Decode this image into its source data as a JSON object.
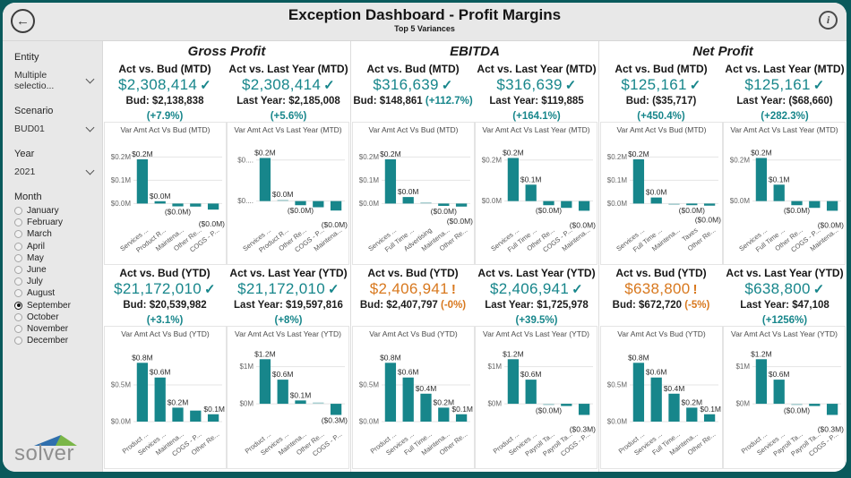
{
  "header": {
    "title": "Exception Dashboard - Profit Margins",
    "subtitle": "Top 5 Variances",
    "back_label": "←",
    "info_label": "i"
  },
  "colors": {
    "teal": "#17868b",
    "teal_light": "#a7ced0",
    "orange": "#d8781e",
    "frame": "#0a5a5c",
    "panel_gray": "#e8e8e8"
  },
  "sidebar": {
    "entity_label": "Entity",
    "entity_value": "Multiple selectio...",
    "scenario_label": "Scenario",
    "scenario_value": "BUD01",
    "year_label": "Year",
    "year_value": "2021",
    "month_label": "Month",
    "months": [
      "January",
      "February",
      "March",
      "April",
      "May",
      "June",
      "July",
      "August",
      "September",
      "October",
      "November",
      "December"
    ],
    "selected_month": "September",
    "logo_text": "solver"
  },
  "sections": [
    {
      "title": "Gross Profit",
      "mtd": {
        "kpis": [
          {
            "label": "Act vs. Bud (MTD)",
            "value": "$2,308,414",
            "status_icon": "check",
            "tone": "good",
            "compare": "Bud: $2,138,838",
            "pct": "(+7.9%)",
            "pct_inline": false
          },
          {
            "label": "Act vs. Last Year (MTD)",
            "value": "$2,308,414",
            "status_icon": "check",
            "tone": "good",
            "compare": "Last Year: $2,185,008",
            "pct": "(+5.6%)",
            "pct_inline": false
          }
        ],
        "charts": [
          {
            "type": "bar",
            "title": "Var Amt Act Vs Bud (MTD)",
            "ylim": [
              -0.06,
              0.24
            ],
            "y_ticks": [
              {
                "label": "$0.0M",
                "v": 0
              },
              {
                "label": "$0.1M",
                "v": 0.1
              },
              {
                "label": "$0.2M",
                "v": 0.2
              }
            ],
            "categories": [
              "Services ...",
              "Product R...",
              "Maintena...",
              "Other Re...",
              "COGS - P..."
            ],
            "values": [
              0.19,
              0.01,
              -0.012,
              -0.013,
              -0.026
            ],
            "labels": [
              "$0.2M",
              "$0.0M",
              "($0.0M)",
              "",
              "($0.0M)"
            ]
          },
          {
            "type": "bar",
            "title": "Var Amt Act Vs Last Year (MTD)",
            "ylim": [
              -0.08,
              0.26
            ],
            "y_ticks": [
              {
                "label": "$0....",
                "v": 0
              },
              {
                "label": "$0....",
                "v": 0.2
              }
            ],
            "categories": [
              "Services ...",
              "Product R...",
              "Other Re...",
              "COGS - P...",
              "Maintena..."
            ],
            "values": [
              0.21,
              0.006,
              -0.02,
              -0.03,
              -0.046
            ],
            "labels": [
              "$0.2M",
              "$0.0M",
              "($0.0M)",
              "",
              "($0.0M)"
            ]
          }
        ]
      },
      "ytd": {
        "kpis": [
          {
            "label": "Act vs. Bud (YTD)",
            "value": "$21,172,010",
            "status_icon": "check",
            "tone": "good",
            "compare": "Bud: $20,539,982",
            "pct": "(+3.1%)",
            "pct_inline": false
          },
          {
            "label": "Act vs. Last Year (YTD)",
            "value": "$21,172,010",
            "status_icon": "check",
            "tone": "good",
            "compare": "Last Year: $19,597,816",
            "pct": "(+8%)",
            "pct_inline": false
          }
        ],
        "charts": [
          {
            "type": "bar",
            "title": "Var Amt Act Vs Bud (YTD)",
            "ylim": [
              0,
              0.95
            ],
            "y_ticks": [
              {
                "label": "$0.0M",
                "v": 0
              },
              {
                "label": "$0.5M",
                "v": 0.5
              }
            ],
            "categories": [
              "Product ...",
              "Services ...",
              "Maintena...",
              "COGS - P...",
              "Other Re..."
            ],
            "values": [
              0.8,
              0.6,
              0.19,
              0.15,
              0.1
            ],
            "labels": [
              "$0.8M",
              "$0.6M",
              "$0.2M",
              "",
              "$0.1M"
            ]
          },
          {
            "type": "bar",
            "title": "Var Amt Act Vs Last Year (YTD)",
            "ylim": [
              -0.48,
              1.4
            ],
            "y_ticks": [
              {
                "label": "$0M",
                "v": 0
              },
              {
                "label": "$1M",
                "v": 1
              }
            ],
            "categories": [
              "Product ...",
              "Services ...",
              "Maintena...",
              "Other Re...",
              "COGS - P..."
            ],
            "values": [
              1.2,
              0.65,
              0.09,
              0.015,
              -0.3
            ],
            "labels": [
              "$1.2M",
              "$0.6M",
              "$0.1M",
              "",
              "($0.3M)"
            ]
          }
        ]
      }
    },
    {
      "title": "EBITDA",
      "mtd": {
        "kpis": [
          {
            "label": "Act vs. Bud (MTD)",
            "value": "$316,639",
            "status_icon": "check",
            "tone": "good",
            "compare": "Bud: $148,861",
            "pct": "(+112.7%)",
            "pct_inline": true
          },
          {
            "label": "Act vs. Last Year (MTD)",
            "value": "$316,639",
            "status_icon": "check",
            "tone": "good",
            "compare": "Last Year: $119,885",
            "pct": "(+164.1%)",
            "pct_inline": false
          }
        ],
        "charts": [
          {
            "type": "bar",
            "title": "Var Amt Act Vs Bud (MTD)",
            "ylim": [
              -0.06,
              0.24
            ],
            "y_ticks": [
              {
                "label": "$0.0M",
                "v": 0
              },
              {
                "label": "$0.1M",
                "v": 0.1
              },
              {
                "label": "$0.2M",
                "v": 0.2
              }
            ],
            "categories": [
              "Services ...",
              "Full Time ...",
              "Advertising",
              "Maintena...",
              "Other Re..."
            ],
            "values": [
              0.19,
              0.028,
              0.003,
              -0.01,
              -0.013
            ],
            "labels": [
              "$0.2M",
              "$0.0M",
              "",
              "($0.0M)",
              "($0.0M)"
            ]
          },
          {
            "type": "bar",
            "title": "Var Amt Act Vs Last Year (MTD)",
            "ylim": [
              -0.08,
              0.26
            ],
            "y_ticks": [
              {
                "label": "$0.0M",
                "v": 0
              },
              {
                "label": "$0.2M",
                "v": 0.2
              }
            ],
            "categories": [
              "Services ...",
              "Full Time ...",
              "Other Re...",
              "COGS - P...",
              "Maintena..."
            ],
            "values": [
              0.21,
              0.08,
              -0.02,
              -0.033,
              -0.047
            ],
            "labels": [
              "$0.2M",
              "$0.1M",
              "($0.0M)",
              "",
              "($0.0M)"
            ]
          }
        ]
      },
      "ytd": {
        "kpis": [
          {
            "label": "Act vs. Bud (YTD)",
            "value": "$2,406,941",
            "status_icon": "warn",
            "tone": "warn",
            "compare": "Bud: $2,407,797",
            "pct": "(-0%)",
            "pct_inline": true
          },
          {
            "label": "Act vs. Last Year (YTD)",
            "value": "$2,406,941",
            "status_icon": "check",
            "tone": "good",
            "compare": "Last Year: $1,725,978",
            "pct": "(+39.5%)",
            "pct_inline": false
          }
        ],
        "charts": [
          {
            "type": "bar",
            "title": "Var Amt Act Vs Bud (YTD)",
            "ylim": [
              0,
              0.95
            ],
            "y_ticks": [
              {
                "label": "$0.0M",
                "v": 0
              },
              {
                "label": "$0.5M",
                "v": 0.5
              }
            ],
            "categories": [
              "Product ...",
              "Services ...",
              "Full Time...",
              "Maintena...",
              "Other Re..."
            ],
            "values": [
              0.8,
              0.6,
              0.38,
              0.19,
              0.1
            ],
            "labels": [
              "$0.8M",
              "$0.6M",
              "$0.4M",
              "$0.2M",
              "$0.1M"
            ]
          },
          {
            "type": "bar",
            "title": "Var Amt Act Vs Last Year (YTD)",
            "ylim": [
              -0.48,
              1.4
            ],
            "y_ticks": [
              {
                "label": "$0M",
                "v": 0
              },
              {
                "label": "$1M",
                "v": 1
              }
            ],
            "categories": [
              "Product ...",
              "Services ...",
              "Payroll Ta...",
              "Payroll Ta...",
              "COGS - P..."
            ],
            "values": [
              1.2,
              0.65,
              -0.015,
              -0.06,
              -0.3
            ],
            "labels": [
              "$1.2M",
              "$0.6M",
              "($0.0M)",
              "",
              "($0.3M)"
            ]
          }
        ]
      }
    },
    {
      "title": "Net Profit",
      "mtd": {
        "kpis": [
          {
            "label": "Act vs. Bud (MTD)",
            "value": "$125,161",
            "status_icon": "check",
            "tone": "good",
            "compare": "Bud: ($35,717)",
            "pct": "(+450.4%)",
            "pct_inline": false
          },
          {
            "label": "Act vs. Last Year (MTD)",
            "value": "$125,161",
            "status_icon": "check",
            "tone": "good",
            "compare": "Last Year: ($68,660)",
            "pct": "(+282.3%)",
            "pct_inline": false
          }
        ],
        "charts": [
          {
            "type": "bar",
            "title": "Var Amt Act Vs Bud (MTD)",
            "ylim": [
              -0.06,
              0.24
            ],
            "y_ticks": [
              {
                "label": "$0.0M",
                "v": 0
              },
              {
                "label": "$0.1M",
                "v": 0.1
              },
              {
                "label": "$0.2M",
                "v": 0.2
              }
            ],
            "categories": [
              "Services ...",
              "Full Time ...",
              "Maintena...",
              "Taxes",
              "Other Re..."
            ],
            "values": [
              0.19,
              0.026,
              -0.006,
              -0.007,
              -0.009
            ],
            "labels": [
              "$0.2M",
              "$0.0M",
              "",
              "($0.0M)",
              "($0.0M)"
            ]
          },
          {
            "type": "bar",
            "title": "Var Amt Act Vs Last Year (MTD)",
            "ylim": [
              -0.08,
              0.26
            ],
            "y_ticks": [
              {
                "label": "$0.0M",
                "v": 0
              },
              {
                "label": "$0.2M",
                "v": 0.2
              }
            ],
            "categories": [
              "Services ...",
              "Full Time ...",
              "Other Re...",
              "COGS - P...",
              "Maintena..."
            ],
            "values": [
              0.21,
              0.08,
              -0.02,
              -0.033,
              -0.047
            ],
            "labels": [
              "$0.2M",
              "$0.1M",
              "($0.0M)",
              "",
              "($0.0M)"
            ]
          }
        ]
      },
      "ytd": {
        "kpis": [
          {
            "label": "Act vs. Bud (YTD)",
            "value": "$638,800",
            "status_icon": "warn",
            "tone": "warn",
            "compare": "Bud: $672,720",
            "pct": "(-5%)",
            "pct_inline": true
          },
          {
            "label": "Act vs. Last Year (YTD)",
            "value": "$638,800",
            "status_icon": "check",
            "tone": "good",
            "compare": "Last Year: $47,108",
            "pct": "(+1256%)",
            "pct_inline": false
          }
        ],
        "charts": [
          {
            "type": "bar",
            "title": "Var Amt Act Vs Bud (YTD)",
            "ylim": [
              0,
              0.95
            ],
            "y_ticks": [
              {
                "label": "$0.0M",
                "v": 0
              },
              {
                "label": "$0.5M",
                "v": 0.5
              }
            ],
            "categories": [
              "Product ...",
              "Services ...",
              "Full Time...",
              "Maintena...",
              "Other Re..."
            ],
            "values": [
              0.8,
              0.6,
              0.38,
              0.19,
              0.1
            ],
            "labels": [
              "$0.8M",
              "$0.6M",
              "$0.4M",
              "$0.2M",
              "$0.1M"
            ]
          },
          {
            "type": "bar",
            "title": "Var Amt Act Vs Last Year (YTD)",
            "ylim": [
              -0.48,
              1.4
            ],
            "y_ticks": [
              {
                "label": "$0M",
                "v": 0
              },
              {
                "label": "$1M",
                "v": 1
              }
            ],
            "categories": [
              "Product ...",
              "Services ...",
              "Payroll Ta...",
              "Payroll Ta...",
              "COGS - P..."
            ],
            "values": [
              1.2,
              0.65,
              -0.015,
              -0.06,
              -0.3
            ],
            "labels": [
              "$1.2M",
              "$0.6M",
              "($0.0M)",
              "",
              "($0.3M)"
            ]
          }
        ]
      }
    }
  ]
}
